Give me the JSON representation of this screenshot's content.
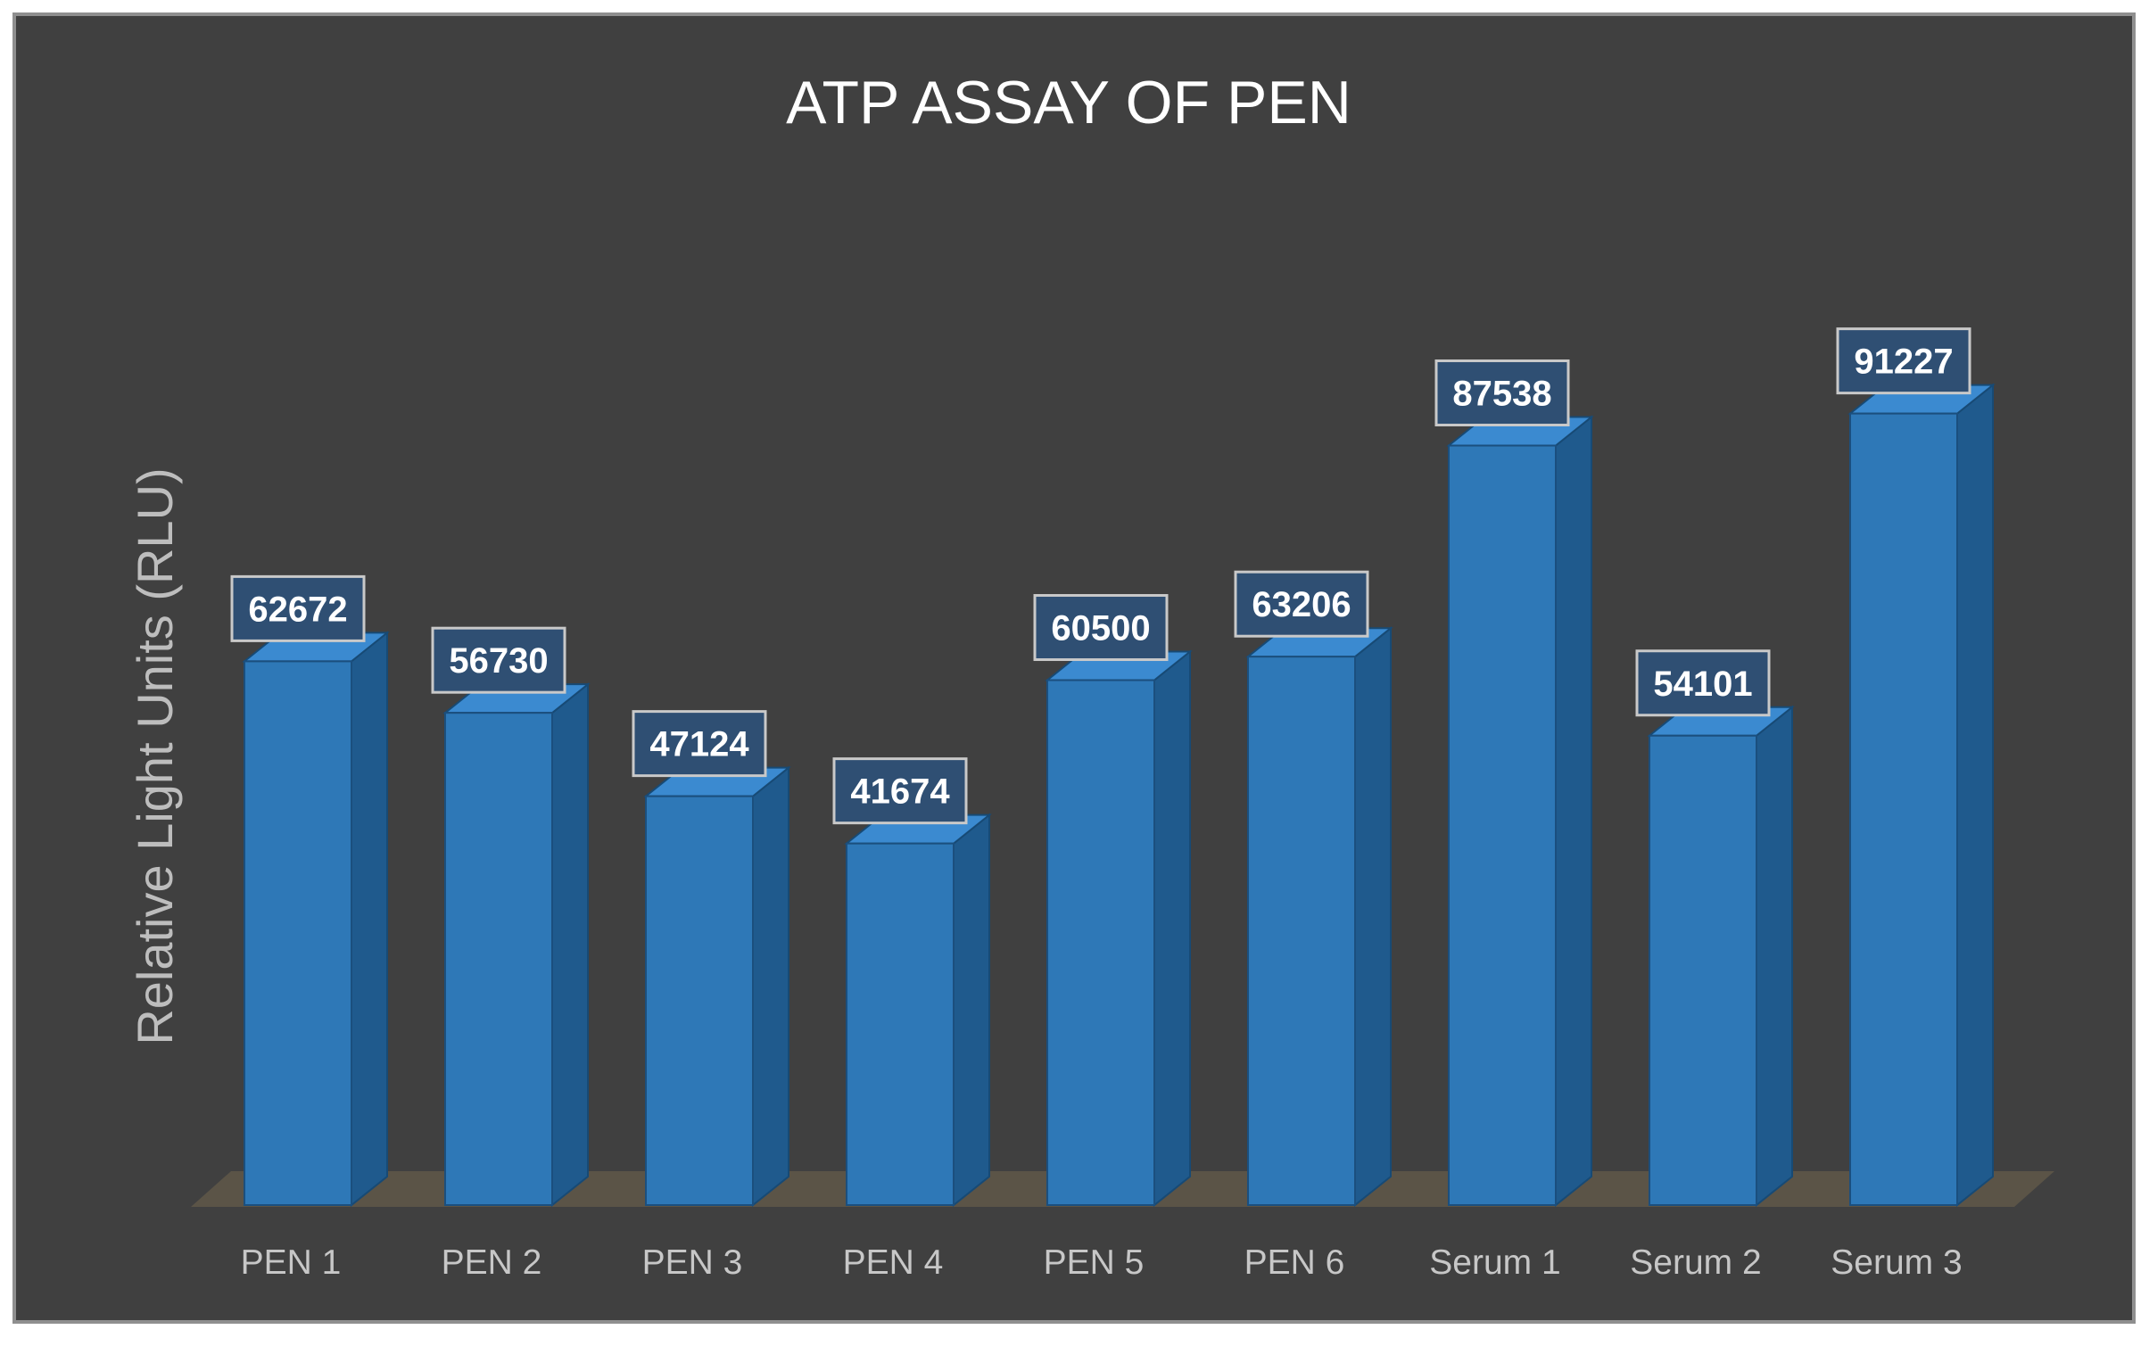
{
  "chart_data": {
    "type": "bar",
    "style": "3d-column",
    "title": "ATP ASSAY OF PEN",
    "xlabel": "",
    "ylabel": "Relative Light Units (RLU)",
    "categories": [
      "PEN 1",
      "PEN 2",
      "PEN 3",
      "PEN 4",
      "PEN 5",
      "PEN 6",
      "Serum 1",
      "Serum 2",
      "Serum 3"
    ],
    "values": [
      62672,
      56730,
      47124,
      41674,
      60500,
      63206,
      87538,
      54101,
      91227
    ],
    "ylim": [
      0,
      100000
    ],
    "grid": false,
    "legend": "none",
    "data_labels": true,
    "colors": {
      "background": "#404040",
      "bar_front": "#2e78b7",
      "bar_side": "#1f5a8d",
      "bar_top": "#3b8ad0",
      "floor": "#5b5447",
      "label_box": "#2f4f73",
      "title": "#ffffff",
      "axis_text": "#c7c7c7"
    }
  }
}
